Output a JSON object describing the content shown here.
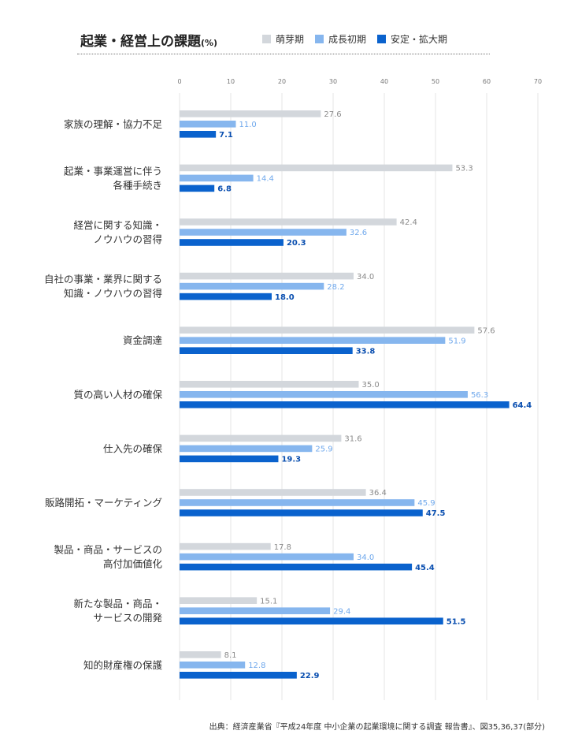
{
  "header": {
    "title": "起業・経営上の課題",
    "title_unit": "(%)"
  },
  "source": "出典：経済産業省『平成24年度 中小企業の起業環境に関する調査 報告書』、図35,36,37(部分)",
  "chart_data": {
    "type": "bar",
    "orientation": "horizontal",
    "title": "起業・経営上の課題(%)",
    "xlim": [
      0,
      70
    ],
    "xticks": [
      0,
      10,
      20,
      30,
      40,
      50,
      60,
      70
    ],
    "grid": true,
    "legend_position": "top",
    "categories": [
      [
        "家族の理解・協力不足"
      ],
      [
        "起業・事業運営に伴う",
        "各種手続き"
      ],
      [
        "経営に関する知識・",
        "ノウハウの習得"
      ],
      [
        "自社の事業・業界に関する",
        "知識・ノウハウの習得"
      ],
      [
        "資金調達"
      ],
      [
        "質の高い人材の確保"
      ],
      [
        "仕入先の確保"
      ],
      [
        "販路開拓・マーケティング"
      ],
      [
        "製品・商品・サービスの",
        "高付加価値化"
      ],
      [
        "新たな製品・商品・",
        "サービスの開発"
      ],
      [
        "知的財産権の保護"
      ]
    ],
    "series": [
      {
        "name": "萌芽期",
        "color": "#d3d7dc",
        "label_color": "#8a8a8a",
        "label_bold": false,
        "values": [
          "27.6",
          "53.3",
          "42.4",
          "34.0",
          "57.6",
          "35.0",
          "31.6",
          "36.4",
          "17.8",
          "15.1",
          "8.1"
        ]
      },
      {
        "name": "成長初期",
        "color": "#86b6ee",
        "label_color": "#6fa8ec",
        "label_bold": false,
        "values": [
          "11.0",
          "14.4",
          "32.6",
          "28.2",
          "51.9",
          "56.3",
          "25.9",
          "45.9",
          "34.0",
          "29.4",
          "12.8"
        ]
      },
      {
        "name": "安定・拡大期",
        "color": "#0a62cd",
        "label_color": "#0a4fb0",
        "label_bold": true,
        "values": [
          "7.1",
          "6.8",
          "20.3",
          "18.0",
          "33.8",
          "64.4",
          "19.3",
          "47.5",
          "45.4",
          "51.5",
          "22.9"
        ]
      }
    ]
  }
}
